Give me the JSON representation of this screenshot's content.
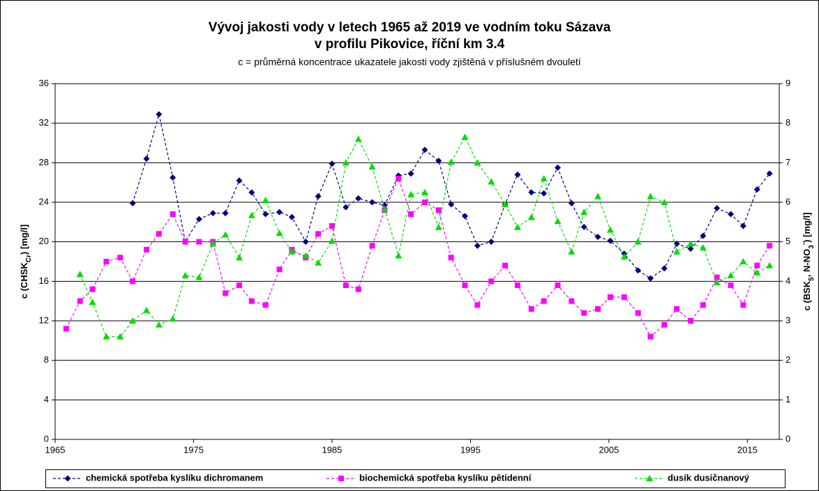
{
  "chart_data": {
    "type": "line",
    "title": "Vývoj jakosti vody v letech 1965 až 2019 ve vodním toku Sázava",
    "title_line2": "v profilu Pikovice, říční km 3.4",
    "subtitle": "c = průměrná koncentrace ukazatele jakosti vody zjištěná v příslušném dvouletí",
    "y_label": [
      "c (CHSK",
      "Cr",
      ") [mg/l]"
    ],
    "y2_label": [
      "c (BSK",
      "5",
      ", N-NO",
      "3",
      "-",
      ") [mg/l]"
    ],
    "x": [
      1965.8,
      1966.8,
      1967.7,
      1968.7,
      1969.7,
      1970.6,
      1971.6,
      1972.5,
      1973.5,
      1974.4,
      1975.4,
      1976.4,
      1977.3,
      1978.3,
      1979.2,
      1980.2,
      1981.2,
      1982.1,
      1983.1,
      1984.0,
      1985.0,
      1986.0,
      1986.9,
      1987.9,
      1988.8,
      1989.8,
      1990.7,
      1991.7,
      1992.7,
      1993.6,
      1994.6,
      1995.5,
      1996.5,
      1997.5,
      1998.4,
      1999.4,
      2000.3,
      2001.3,
      2002.3,
      2003.2,
      2004.2,
      2005.1,
      2006.1,
      2007.1,
      2008.0,
      2009.0,
      2009.9,
      2010.9,
      2011.8,
      2012.8,
      2013.8,
      2014.7,
      2015.7,
      2016.6
    ],
    "xlim": [
      1965,
      2017.3
    ],
    "xticks": [
      1965,
      1975,
      1985,
      1995,
      2005,
      2015
    ],
    "ylim": [
      0,
      36
    ],
    "yticks": [
      0,
      4,
      8,
      12,
      16,
      20,
      24,
      28,
      32,
      36
    ],
    "y2lim": [
      0,
      9
    ],
    "y2ticks": [
      0,
      1,
      2,
      3,
      4,
      5,
      6,
      7,
      8,
      9
    ],
    "grid": true,
    "series": [
      {
        "name": "chemická spotřeba kyslíku dichromanem",
        "color": "#000080",
        "marker": "diamond",
        "values": [
          null,
          null,
          null,
          null,
          null,
          23.9,
          28.4,
          32.9,
          26.5,
          20.0,
          22.3,
          22.9,
          22.9,
          26.2,
          25.0,
          22.8,
          23.0,
          22.5,
          20.0,
          24.6,
          27.9,
          23.5,
          24.4,
          24.0,
          23.7,
          26.7,
          26.9,
          29.3,
          28.2,
          23.8,
          22.6,
          19.6,
          20.0,
          23.8,
          26.8,
          25.0,
          24.9,
          27.5,
          23.9,
          21.5,
          20.5,
          20.1,
          18.8,
          17.1,
          16.3,
          17.3,
          19.8,
          19.3,
          20.6,
          23.4,
          22.8,
          21.6,
          25.3,
          26.9
        ]
      },
      {
        "name": "biochemická spotřeba kyslíku pětidenní",
        "color": "#ff00ff",
        "marker": "square",
        "axis": "y2",
        "values": [
          2.8,
          3.5,
          3.8,
          4.5,
          4.6,
          4.0,
          4.8,
          5.2,
          5.7,
          5.0,
          5.0,
          5.0,
          3.7,
          3.9,
          3.5,
          3.4,
          4.3,
          4.8,
          4.6,
          5.2,
          5.4,
          3.9,
          3.8,
          4.9,
          5.8,
          6.6,
          5.7,
          6.0,
          5.8,
          4.6,
          3.9,
          3.4,
          4.0,
          4.4,
          3.9,
          3.3,
          3.5,
          3.9,
          3.5,
          3.2,
          3.3,
          3.6,
          3.6,
          3.2,
          2.6,
          2.9,
          3.3,
          3.0,
          3.4,
          4.1,
          3.9,
          3.4,
          4.4,
          4.9
        ]
      },
      {
        "name": "dusík dusičnanový",
        "color": "#00dd00",
        "marker": "triangle",
        "axis": "y2",
        "values": [
          null,
          4.18,
          3.47,
          2.6,
          2.6,
          3.0,
          3.27,
          2.9,
          3.05,
          4.15,
          4.1,
          4.95,
          5.18,
          4.6,
          5.67,
          6.05,
          5.22,
          4.75,
          4.65,
          4.47,
          5.02,
          7.0,
          7.6,
          6.9,
          5.82,
          4.65,
          6.2,
          6.25,
          5.37,
          7.02,
          7.65,
          7.0,
          6.52,
          5.95,
          5.37,
          5.62,
          6.6,
          5.52,
          4.75,
          5.75,
          6.15,
          5.3,
          4.62,
          5.0,
          6.15,
          6.0,
          4.75,
          4.95,
          4.85,
          3.97,
          4.15,
          4.5,
          4.22,
          4.4
        ]
      }
    ]
  }
}
